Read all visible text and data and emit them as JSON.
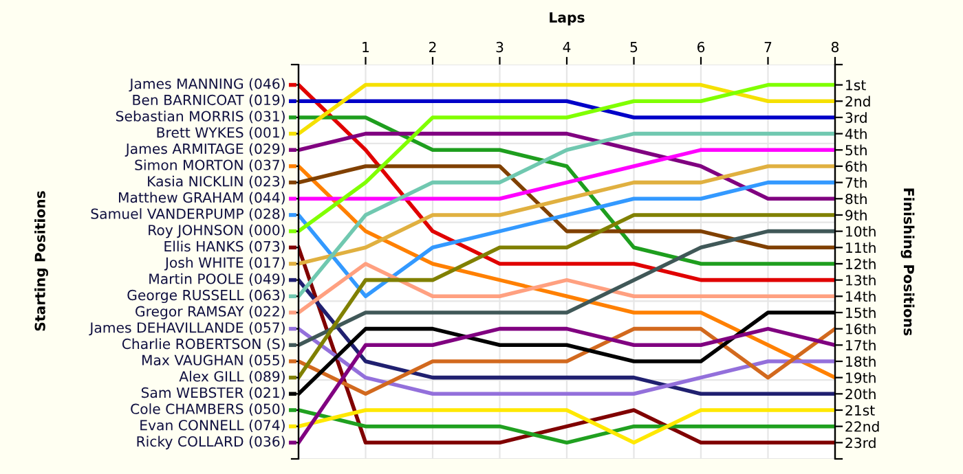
{
  "chart_data": {
    "type": "line",
    "xlabel": "Laps",
    "annotations": [
      "Starting Positions"
    ],
    "y2label": "Finishing Positions",
    "x": [
      0,
      1,
      2,
      3,
      4,
      5,
      6,
      7,
      8
    ],
    "xlim": [
      0,
      8
    ],
    "xticks": [
      1,
      2,
      3,
      4,
      5,
      6,
      7,
      8
    ],
    "y2lim": [
      24,
      -0.25
    ],
    "y2ticks": [
      {
        "value": -0.25,
        "label": null
      },
      {
        "value": 1,
        "label": "1st"
      },
      {
        "value": 2,
        "label": "2nd"
      },
      {
        "value": 3,
        "label": "3rd"
      },
      {
        "value": 4,
        "label": "4th"
      },
      {
        "value": 5,
        "label": "5th"
      },
      {
        "value": 6,
        "label": "6th"
      },
      {
        "value": 7,
        "label": "7th"
      },
      {
        "value": 8,
        "label": "8th"
      },
      {
        "value": 9,
        "label": "9th"
      },
      {
        "value": 10,
        "label": "10th"
      },
      {
        "value": 11,
        "label": "11th"
      },
      {
        "value": 12,
        "label": "12th"
      },
      {
        "value": 13,
        "label": "13th"
      },
      {
        "value": 14,
        "label": "14th"
      },
      {
        "value": 15,
        "label": "15th"
      },
      {
        "value": 16,
        "label": "16th"
      },
      {
        "value": 17,
        "label": "17th"
      },
      {
        "value": 18,
        "label": "18th"
      },
      {
        "value": 19,
        "label": "19th"
      },
      {
        "value": 20,
        "label": "20th"
      },
      {
        "value": 21,
        "label": "21st"
      },
      {
        "value": 22,
        "label": "22nd"
      },
      {
        "value": 23,
        "label": "23rd"
      },
      {
        "value": 24,
        "label": null
      }
    ],
    "grid": true,
    "legend": "left",
    "marker": "none",
    "line_style": "solid",
    "series": [
      {
        "name": "James MANNING (046)",
        "axis": "y2",
        "color": "#e00000",
        "values": [
          1,
          5,
          10,
          12,
          12,
          12,
          13,
          13,
          13
        ]
      },
      {
        "name": "Ben BARNICOAT (019)",
        "axis": "y2",
        "color": "#0000c8",
        "values": [
          2,
          2,
          2,
          2,
          2,
          3,
          3,
          3,
          3
        ]
      },
      {
        "name": "Sebastian MORRIS (031)",
        "axis": "y2",
        "color": "#1e9e1e",
        "values": [
          3,
          3,
          5,
          5,
          6,
          11,
          12,
          12,
          12
        ]
      },
      {
        "name": "Brett WYKES (001)",
        "axis": "y2",
        "color": "#f5e000",
        "values": [
          4,
          1,
          1,
          1,
          1,
          1,
          1,
          2,
          2
        ]
      },
      {
        "name": "James ARMITAGE (029)",
        "axis": "y2",
        "color": "#800080",
        "values": [
          5,
          4,
          4,
          4,
          4,
          5,
          6,
          8,
          8
        ]
      },
      {
        "name": "Simon MORTON (037)",
        "axis": "y2",
        "color": "#ff8000",
        "values": [
          6,
          10,
          12,
          13,
          14,
          15,
          15,
          17,
          19
        ]
      },
      {
        "name": "Kasia NICKLIN (023)",
        "axis": "y2",
        "color": "#804000",
        "values": [
          7,
          6,
          6,
          6,
          10,
          10,
          10,
          11,
          11
        ]
      },
      {
        "name": "Matthew GRAHAM (044)",
        "axis": "y2",
        "color": "#ff00ff",
        "values": [
          8,
          8,
          8,
          8,
          7,
          6,
          5,
          5,
          5
        ]
      },
      {
        "name": "Samuel VANDERPUMP (028)",
        "axis": "y2",
        "color": "#3399ff",
        "values": [
          9,
          14,
          11,
          10,
          9,
          8,
          8,
          7,
          7
        ]
      },
      {
        "name": "Roy JOHNSON (000)",
        "axis": "y2",
        "color": "#80ff00",
        "values": [
          10,
          7,
          3,
          3,
          3,
          2,
          2,
          1,
          1
        ]
      },
      {
        "name": "Ellis HANKS (073)",
        "axis": "y2",
        "color": "#800000",
        "values": [
          11,
          23,
          23,
          23,
          22,
          21,
          23,
          23,
          23
        ]
      },
      {
        "name": "Josh WHITE (017)",
        "axis": "y2",
        "color": "#e0b040",
        "values": [
          12,
          11,
          9,
          9,
          8,
          7,
          7,
          6,
          6
        ]
      },
      {
        "name": "Martin POOLE (049)",
        "axis": "y2",
        "color": "#202070",
        "values": [
          13,
          18,
          19,
          19,
          19,
          19,
          20,
          20,
          20
        ]
      },
      {
        "name": "George RUSSELL (063)",
        "axis": "y2",
        "color": "#70c8b0",
        "values": [
          14,
          9,
          7,
          7,
          5,
          4,
          4,
          4,
          4
        ]
      },
      {
        "name": "Gregor RAMSAY (022)",
        "axis": "y2",
        "color": "#ffa080",
        "values": [
          15,
          12,
          14,
          14,
          13,
          14,
          14,
          14,
          14
        ]
      },
      {
        "name": "James DEHAVILLANDE (057)",
        "axis": "y2",
        "color": "#9370db",
        "values": [
          16,
          19,
          20,
          20,
          20,
          20,
          19,
          18,
          18
        ]
      },
      {
        "name": "Charlie ROBERTSON (S)",
        "axis": "y2",
        "color": "#405858",
        "values": [
          17,
          15,
          15,
          15,
          15,
          13,
          11,
          10,
          10
        ]
      },
      {
        "name": "Max VAUGHAN (055)",
        "axis": "y2",
        "color": "#d2691e",
        "values": [
          18,
          20,
          18,
          18,
          18,
          16,
          16,
          19,
          16
        ]
      },
      {
        "name": "Alex GILL (089)",
        "axis": "y2",
        "color": "#808000",
        "values": [
          19,
          13,
          13,
          11,
          11,
          9,
          9,
          9,
          9
        ]
      },
      {
        "name": "Sam WEBSTER (021)",
        "axis": "y2",
        "color": "#000000",
        "values": [
          20,
          16,
          16,
          17,
          17,
          18,
          18,
          15,
          15
        ]
      },
      {
        "name": "Cole CHAMBERS (050)",
        "axis": "y2",
        "color": "#20a020",
        "values": [
          21,
          22,
          22,
          22,
          23,
          22,
          22,
          22,
          22
        ]
      },
      {
        "name": "Evan CONNELL (074)",
        "axis": "y2",
        "color": "#ffe800",
        "values": [
          22,
          21,
          21,
          21,
          21,
          23,
          21,
          21,
          21
        ]
      },
      {
        "name": "Ricky COLLARD (036)",
        "axis": "y2",
        "color": "#800080",
        "values": [
          23,
          17,
          17,
          16,
          16,
          17,
          17,
          16,
          17
        ]
      }
    ]
  }
}
